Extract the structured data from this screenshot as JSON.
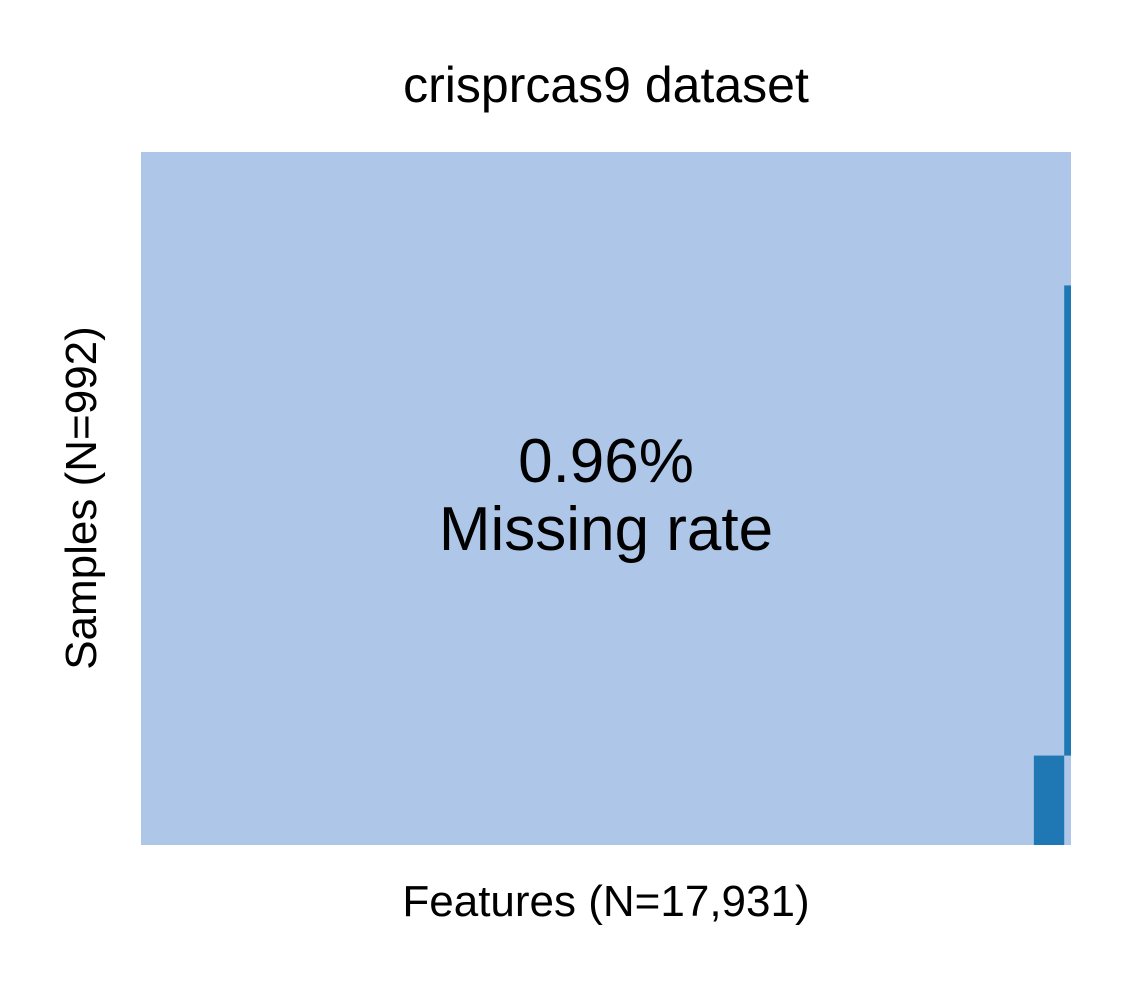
{
  "chart_data": {
    "type": "heatmap",
    "title": "crisprcas9 dataset",
    "xlabel": "Features (N=17,931)",
    "ylabel": "Samples (N=992)",
    "n_features": 17931,
    "n_samples": 992,
    "annotation": {
      "value": "0.96%",
      "label": "Missing rate"
    },
    "colors": {
      "present": "#aec7e8",
      "missing": "#1f77b4"
    },
    "missing_blocks": [
      {
        "feature_range": [
          17800,
          17931
        ],
        "sample_range": [
          191,
          864
        ]
      },
      {
        "feature_range": [
          17215,
          17800
        ],
        "sample_range": [
          864,
          992
        ]
      }
    ],
    "grid": false,
    "legend": "none"
  }
}
